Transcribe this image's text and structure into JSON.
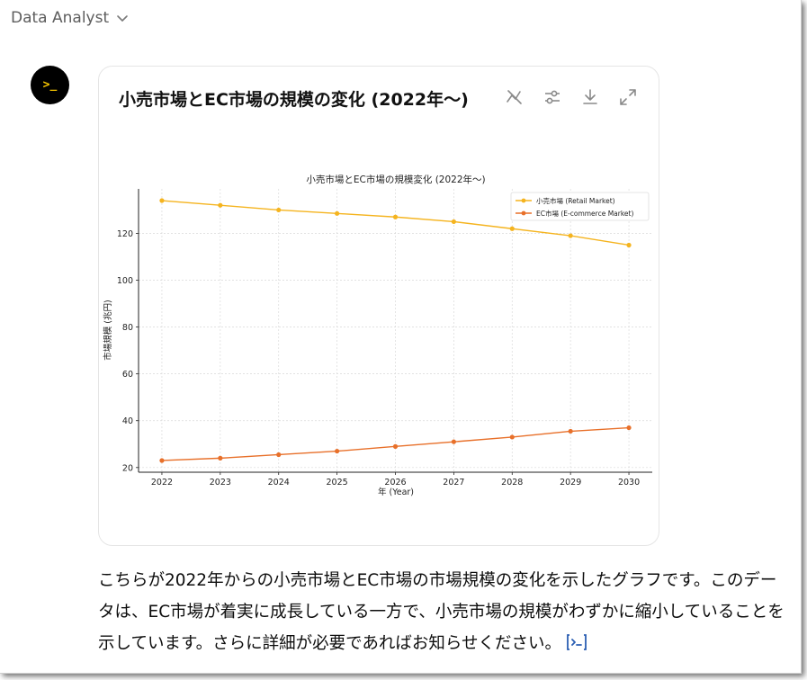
{
  "header": {
    "title": "Data Analyst",
    "chevron_icon": "chevron-down-icon"
  },
  "avatar": {
    "glyph": ">_",
    "icon": "terminal-icon",
    "bg": "#000000",
    "fg": "#f5c400"
  },
  "card": {
    "title": "小売市場とEC市場の規模の変化 (2022年〜)",
    "tools": [
      {
        "name": "toggle-interactive-icon"
      },
      {
        "name": "settings-sliders-icon"
      },
      {
        "name": "download-icon"
      },
      {
        "name": "expand-icon"
      }
    ]
  },
  "chart_data": {
    "type": "line",
    "title": "小売市場とEC市場の規模変化 (2022年〜)",
    "xlabel": "年 (Year)",
    "ylabel": "市場規模 (兆円)",
    "x": [
      2022,
      2023,
      2024,
      2025,
      2026,
      2027,
      2028,
      2029,
      2030
    ],
    "ylim": [
      18,
      139
    ],
    "yticks": [
      20,
      40,
      60,
      80,
      100,
      120
    ],
    "grid": true,
    "legend_position": "top-right",
    "series": [
      {
        "name": "小売市場 (Retail Market)",
        "color": "#f5b41f",
        "values": [
          134,
          132,
          130,
          128.5,
          127,
          125,
          122,
          119,
          115
        ]
      },
      {
        "name": "EC市場 (E-commerce Market)",
        "color": "#e8702a",
        "values": [
          23,
          24,
          25.5,
          27,
          29,
          31,
          33,
          35.5,
          37
        ]
      }
    ]
  },
  "message": {
    "text": "こちらが2022年からの小売市場とEC市場の市場規模の変化を示したグラフです。このデータは、EC市場が着実に成長している一方で、小売市場の規模がわずかに縮小していることを示しています。さらに詳細が必要であればお知らせください。",
    "trailing_icon": "code-interpreter-icon"
  }
}
